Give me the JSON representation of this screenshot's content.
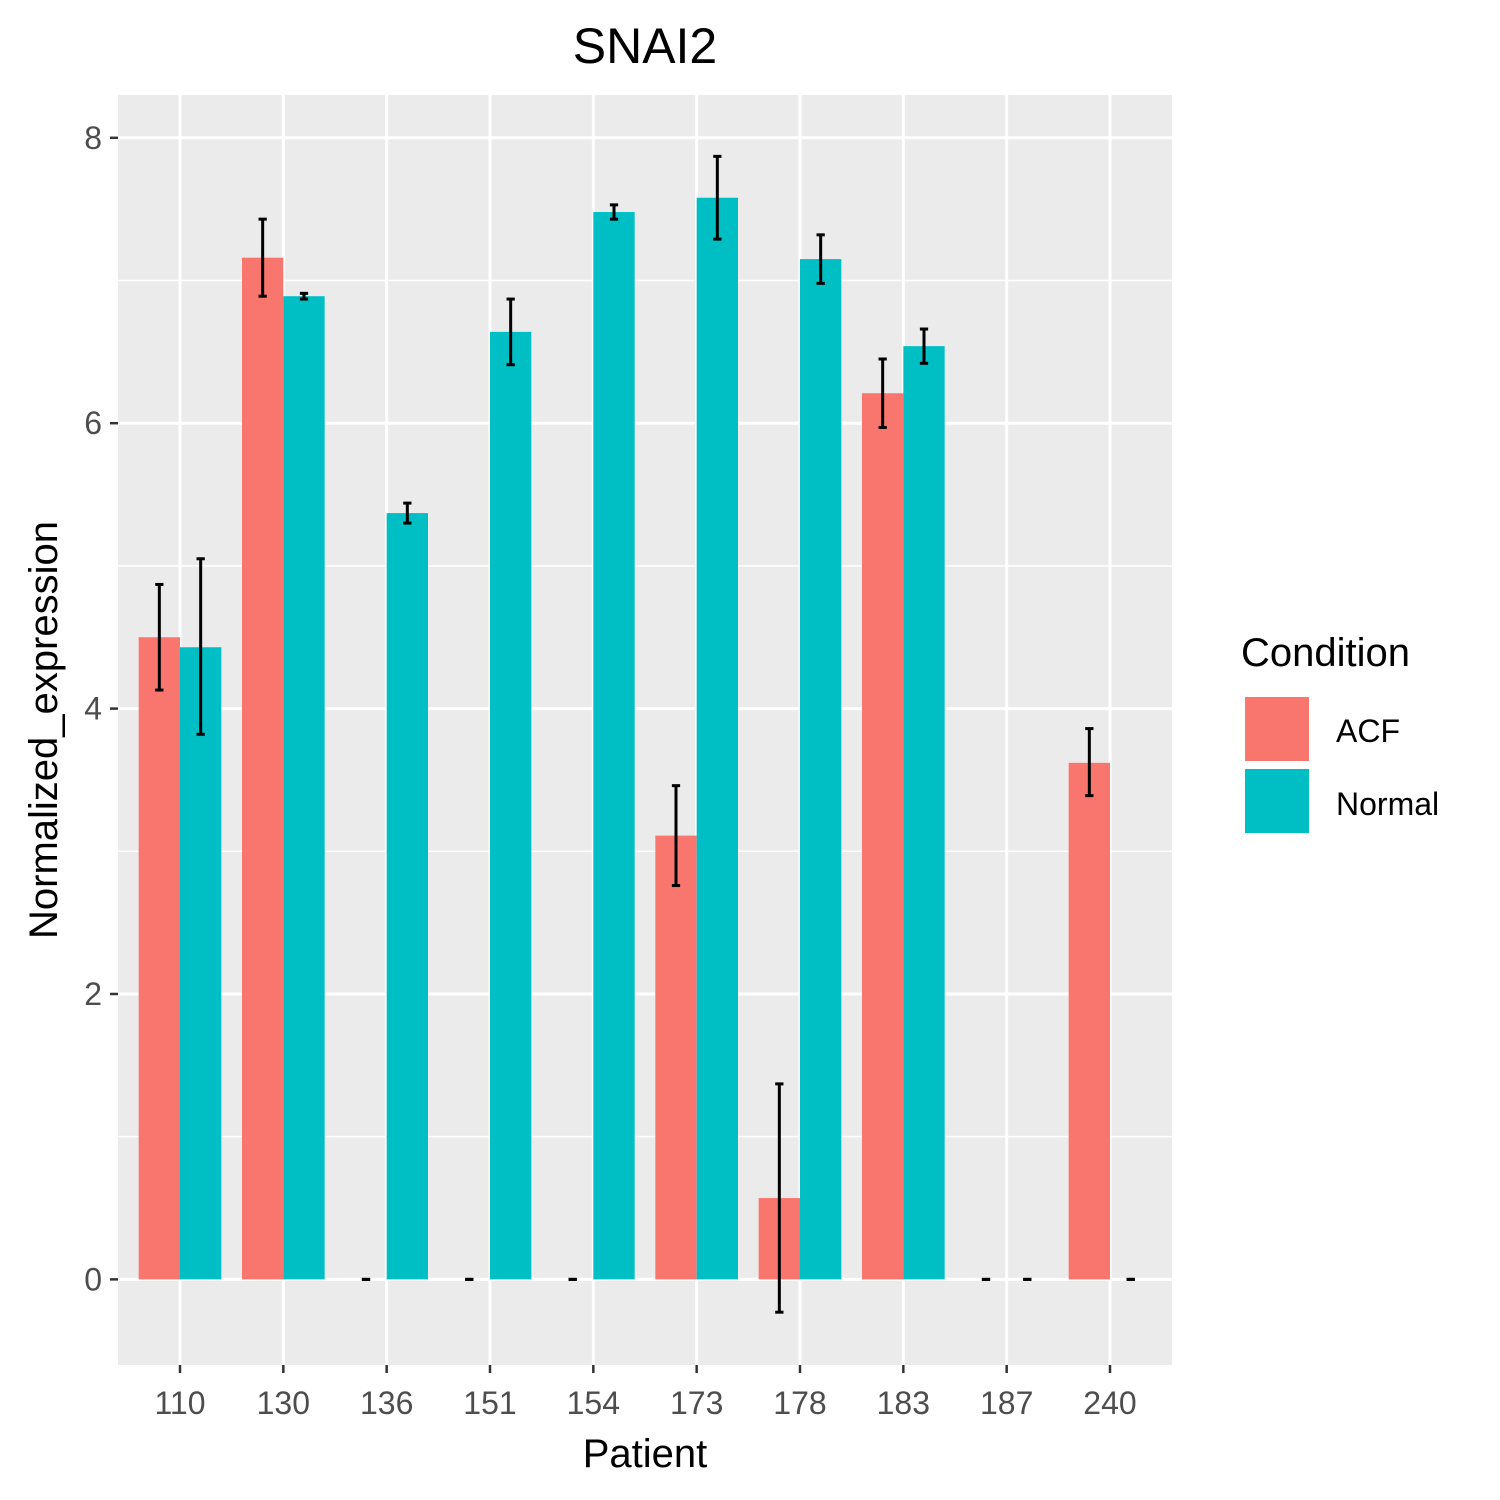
{
  "chart_data": {
    "type": "bar",
    "title": "SNAI2",
    "xlabel": "Patient",
    "ylabel": "Normalized_expression",
    "categories": [
      "110",
      "130",
      "136",
      "151",
      "154",
      "173",
      "178",
      "183",
      "187",
      "240"
    ],
    "ylim": [
      -0.6,
      8.3
    ],
    "yticks": [
      0,
      2,
      4,
      6,
      8
    ],
    "grid": true,
    "legend": {
      "title": "Condition",
      "position": "right"
    },
    "series": [
      {
        "name": "ACF",
        "color": "#F8766D",
        "values": [
          4.5,
          7.16,
          0,
          0,
          0,
          3.11,
          0.57,
          6.21,
          0,
          3.62
        ],
        "error_low": [
          4.13,
          6.89,
          0,
          0,
          0,
          2.76,
          -0.23,
          5.97,
          0,
          3.39
        ],
        "error_high": [
          4.87,
          7.43,
          0,
          0,
          0,
          3.46,
          1.37,
          6.45,
          0,
          3.86
        ]
      },
      {
        "name": "Normal",
        "color": "#00BFC4",
        "values": [
          4.43,
          6.89,
          5.37,
          6.64,
          7.48,
          7.58,
          7.15,
          6.54,
          0,
          0
        ],
        "error_low": [
          3.82,
          6.87,
          5.3,
          6.41,
          7.43,
          7.29,
          6.98,
          6.42,
          0,
          0
        ],
        "error_high": [
          5.05,
          6.91,
          5.44,
          6.87,
          7.53,
          7.87,
          7.32,
          6.66,
          0,
          0
        ]
      }
    ]
  }
}
